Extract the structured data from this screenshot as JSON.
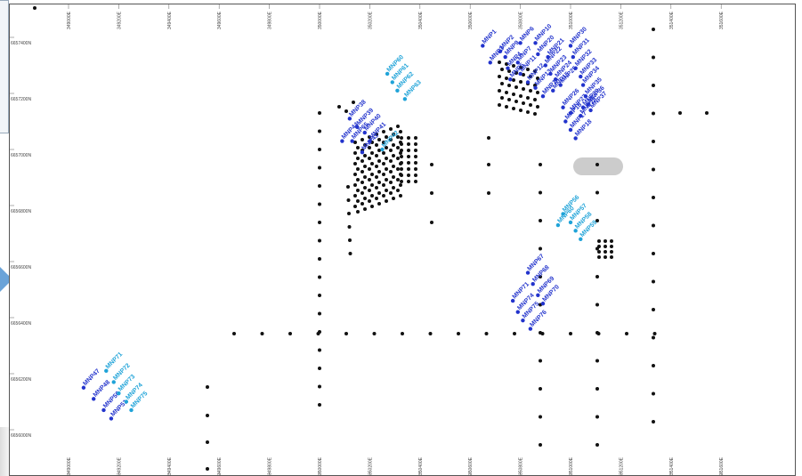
{
  "map": {
    "x_ticks": [
      "349000E",
      "349200E",
      "349400E",
      "349600E",
      "349800E",
      "350000E",
      "350200E",
      "350400E",
      "350600E",
      "350800E",
      "351000E",
      "351200E",
      "351400E",
      "351600E"
    ],
    "x_tick_values": [
      349000,
      349200,
      349400,
      349600,
      349800,
      350000,
      350200,
      350400,
      350600,
      350800,
      351000,
      351200,
      351400,
      351600
    ],
    "y_ticks": [
      "6657400N",
      "6657200N",
      "6657000N",
      "6656800N",
      "6656600N",
      "6656400N",
      "6656200N",
      "6656000N"
    ],
    "y_tick_values": [
      6657400,
      6657200,
      6657000,
      6656800,
      6656600,
      6656400,
      6656200,
      6656000
    ],
    "colors": {
      "existing": "#111111",
      "planned_dark": "#2233cc",
      "planned_light": "#1fa3d8",
      "target": "#cccccc"
    },
    "planned_holes": [
      {
        "label": "MNP1",
        "x": 350650,
        "y": 6657370,
        "color": "dark"
      },
      {
        "label": "MNP2",
        "x": 350720,
        "y": 6657350,
        "color": "dark"
      },
      {
        "label": "MNP3",
        "x": 350680,
        "y": 6657310,
        "color": "dark"
      },
      {
        "label": "MNP4",
        "x": 350750,
        "y": 6657290,
        "color": "dark"
      },
      {
        "label": "MNP5",
        "x": 350760,
        "y": 6657250,
        "color": "dark"
      },
      {
        "label": "MNP6",
        "x": 350800,
        "y": 6657380,
        "color": "dark"
      },
      {
        "label": "MNP7",
        "x": 350790,
        "y": 6657310,
        "color": "dark"
      },
      {
        "label": "MNP9",
        "x": 350740,
        "y": 6657330,
        "color": "dark"
      },
      {
        "label": "MNP10",
        "x": 350860,
        "y": 6657380,
        "color": "dark"
      },
      {
        "label": "MNP11",
        "x": 350800,
        "y": 6657270,
        "color": "dark"
      },
      {
        "label": "MNP12",
        "x": 350830,
        "y": 6657240,
        "color": "dark"
      },
      {
        "label": "MNP13",
        "x": 350860,
        "y": 6657220,
        "color": "dark"
      },
      {
        "label": "MNP14",
        "x": 350890,
        "y": 6657190,
        "color": "dark"
      },
      {
        "label": "MNP15",
        "x": 350930,
        "y": 6657210,
        "color": "dark"
      },
      {
        "label": "MNP20",
        "x": 350870,
        "y": 6657340,
        "color": "dark"
      },
      {
        "label": "MNP21",
        "x": 350910,
        "y": 6657330,
        "color": "dark"
      },
      {
        "label": "MNP22",
        "x": 350900,
        "y": 6657300,
        "color": "dark"
      },
      {
        "label": "MNP23",
        "x": 350920,
        "y": 6657270,
        "color": "dark"
      },
      {
        "label": "MNP24",
        "x": 350940,
        "y": 6657250,
        "color": "dark"
      },
      {
        "label": "MNP25",
        "x": 350960,
        "y": 6657230,
        "color": "dark"
      },
      {
        "label": "MNP26",
        "x": 350970,
        "y": 6657150,
        "color": "dark"
      },
      {
        "label": "MNP27",
        "x": 351000,
        "y": 6657130,
        "color": "dark"
      },
      {
        "label": "MNP28",
        "x": 351040,
        "y": 6657120,
        "color": "dark"
      },
      {
        "label": "MNP29",
        "x": 351050,
        "y": 6657150,
        "color": "dark"
      },
      {
        "label": "MNP30",
        "x": 351000,
        "y": 6657370,
        "color": "dark"
      },
      {
        "label": "MNP31",
        "x": 351010,
        "y": 6657330,
        "color": "dark"
      },
      {
        "label": "MNP32",
        "x": 351020,
        "y": 6657290,
        "color": "dark"
      },
      {
        "label": "MNP33",
        "x": 351040,
        "y": 6657260,
        "color": "dark"
      },
      {
        "label": "MNP34",
        "x": 351050,
        "y": 6657230,
        "color": "dark"
      },
      {
        "label": "MNP35",
        "x": 351060,
        "y": 6657190,
        "color": "dark"
      },
      {
        "label": "MNP36",
        "x": 351070,
        "y": 6657160,
        "color": "dark"
      },
      {
        "label": "MNP37",
        "x": 351080,
        "y": 6657140,
        "color": "dark"
      },
      {
        "label": "MNP16",
        "x": 350980,
        "y": 6657100,
        "color": "dark"
      },
      {
        "label": "MNP17",
        "x": 351000,
        "y": 6657070,
        "color": "dark"
      },
      {
        "label": "MNP18",
        "x": 351020,
        "y": 6657040,
        "color": "dark"
      },
      {
        "label": "MNP38",
        "x": 350120,
        "y": 6657110,
        "color": "dark"
      },
      {
        "label": "MNP39",
        "x": 350150,
        "y": 6657080,
        "color": "dark"
      },
      {
        "label": "MNP40",
        "x": 350180,
        "y": 6657060,
        "color": "dark"
      },
      {
        "label": "MNP41",
        "x": 350200,
        "y": 6657030,
        "color": "dark"
      },
      {
        "label": "MNP42",
        "x": 350250,
        "y": 6657000,
        "color": "light"
      },
      {
        "label": "MNP43",
        "x": 350170,
        "y": 6656990,
        "color": "dark"
      },
      {
        "label": "MNP44",
        "x": 350090,
        "y": 6657030,
        "color": "dark"
      },
      {
        "label": "MNP65",
        "x": 350130,
        "y": 6657030,
        "color": "dark"
      },
      {
        "label": "MNP60",
        "x": 350270,
        "y": 6657270,
        "color": "light"
      },
      {
        "label": "MNP61",
        "x": 350290,
        "y": 6657240,
        "color": "light"
      },
      {
        "label": "MNP62",
        "x": 350310,
        "y": 6657210,
        "color": "light"
      },
      {
        "label": "MNP63",
        "x": 350340,
        "y": 6657180,
        "color": "light"
      },
      {
        "label": "MNP56",
        "x": 350970,
        "y": 6656770,
        "color": "light"
      },
      {
        "label": "MNP57",
        "x": 351000,
        "y": 6656740,
        "color": "light"
      },
      {
        "label": "MNP58",
        "x": 351020,
        "y": 6656710,
        "color": "light"
      },
      {
        "label": "MNP59",
        "x": 351040,
        "y": 6656680,
        "color": "light"
      },
      {
        "label": "MNP60",
        "x": 350950,
        "y": 6656730,
        "color": "light"
      },
      {
        "label": "MNP67",
        "x": 350830,
        "y": 6656560,
        "color": "dark"
      },
      {
        "label": "MNP68",
        "x": 350850,
        "y": 6656520,
        "color": "dark"
      },
      {
        "label": "MNP69",
        "x": 350870,
        "y": 6656480,
        "color": "dark"
      },
      {
        "label": "MNP70",
        "x": 350890,
        "y": 6656450,
        "color": "dark"
      },
      {
        "label": "MNP71",
        "x": 350770,
        "y": 6656460,
        "color": "dark"
      },
      {
        "label": "MNP74",
        "x": 350790,
        "y": 6656420,
        "color": "dark"
      },
      {
        "label": "MNP75",
        "x": 350810,
        "y": 6656390,
        "color": "dark"
      },
      {
        "label": "MNP76",
        "x": 350840,
        "y": 6656360,
        "color": "dark"
      },
      {
        "label": "MNP47",
        "x": 349060,
        "y": 6656150,
        "color": "dark"
      },
      {
        "label": "MNP48",
        "x": 349100,
        "y": 6656110,
        "color": "dark"
      },
      {
        "label": "MNP50",
        "x": 349140,
        "y": 6656070,
        "color": "dark"
      },
      {
        "label": "MNP51",
        "x": 349170,
        "y": 6656040,
        "color": "dark"
      },
      {
        "label": "MNP71",
        "x": 349150,
        "y": 6656210,
        "color": "light"
      },
      {
        "label": "MNP72",
        "x": 349180,
        "y": 6656170,
        "color": "light"
      },
      {
        "label": "MNP73",
        "x": 349200,
        "y": 6656130,
        "color": "light"
      },
      {
        "label": "MNP74",
        "x": 349230,
        "y": 6656100,
        "color": "light"
      },
      {
        "label": "MNP75",
        "x": 349250,
        "y": 6656070,
        "color": "light"
      }
    ]
  }
}
